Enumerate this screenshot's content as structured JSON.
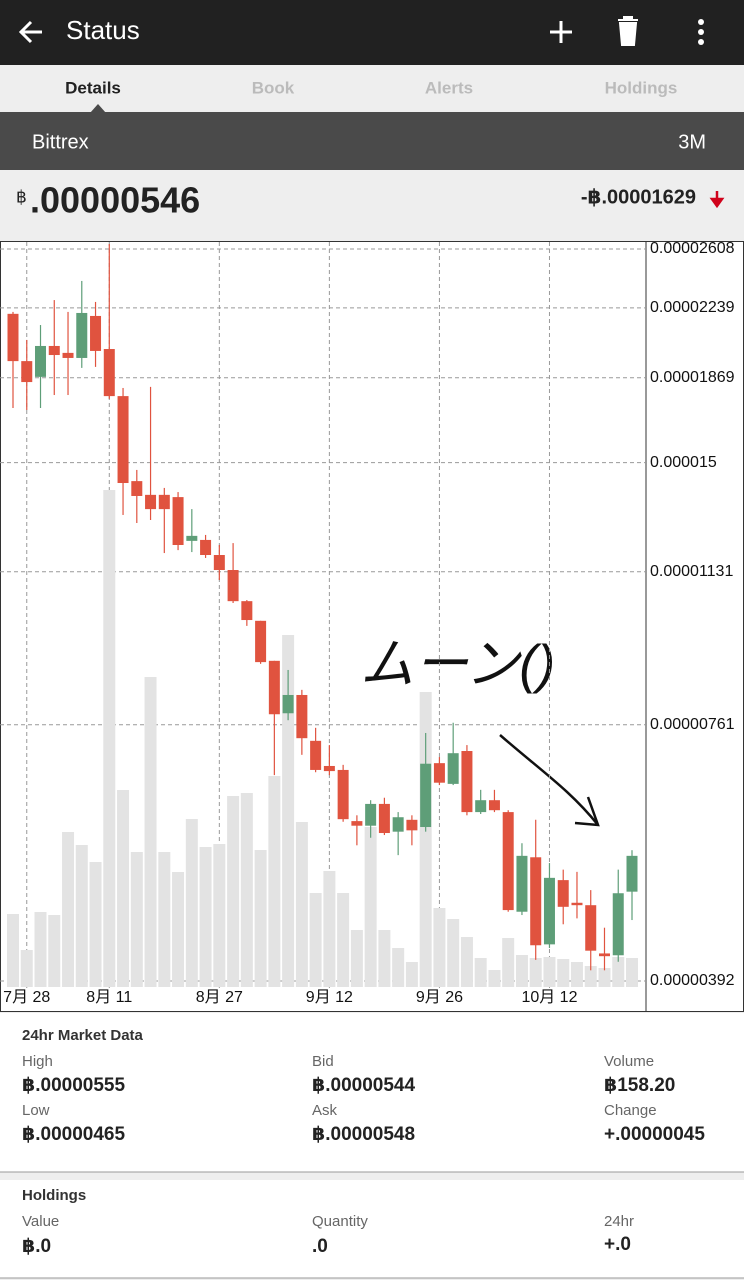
{
  "app_bar": {
    "title": "Status"
  },
  "tabs": [
    "Details",
    "Book",
    "Alerts",
    "Holdings"
  ],
  "exchange": {
    "name": "Bittrex",
    "period": "3M"
  },
  "price": {
    "symbol": "฿",
    "value": ".00000546",
    "change": "-฿.00001629"
  },
  "chart_data": {
    "type": "candlestick",
    "annotation": "ムーン()",
    "categories": [
      null,
      "7月 28",
      null,
      null,
      null,
      null,
      null,
      "8月 11",
      null,
      null,
      null,
      null,
      null,
      null,
      null,
      "8月 27",
      null,
      null,
      null,
      null,
      null,
      null,
      null,
      "9月 12",
      null,
      null,
      null,
      null,
      null,
      null,
      null,
      "9月 26",
      null,
      null,
      null,
      null,
      null,
      null,
      null,
      "10月 12",
      null,
      null,
      null,
      null,
      null,
      null
    ],
    "open": [
      2.205e-05,
      1.951e-05,
      1.873e-05,
      2.029e-05,
      1.993e-05,
      1.967e-05,
      2.193e-05,
      2.013e-05,
      1.782e-05,
      1.43e-05,
      1.38e-05,
      1.38e-05,
      1.372e-05,
      1.225e-05,
      1.228e-05,
      1.181e-05,
      1.136e-05,
      1.048e-05,
      9.96e-06,
      8.98e-06,
      7.84e-06,
      8.22e-06,
      7.3e-06,
      6.84e-06,
      6.77e-06,
      5.93e-06,
      5.86e-06,
      6.2e-06,
      5.77e-06,
      5.95e-06,
      5.84e-06,
      6.89e-06,
      6.53e-06,
      7.11e-06,
      6.07e-06,
      6.26e-06,
      6.07e-06,
      4.69e-06,
      5.4e-06,
      4.31e-06,
      5.09e-06,
      4.8e-06,
      4.77e-06,
      4.21e-06,
      4.19e-06,
      4.94e-06
    ],
    "high": [
      2.216e-05,
      2.061e-05,
      2.142e-05,
      2.285e-05,
      2.216e-05,
      2.401e-05,
      2.274e-05,
      2.642e-05,
      1.82e-05,
      1.472e-05,
      1.825e-05,
      1.405e-05,
      1.39e-05,
      1.33e-05,
      1.244e-05,
      1.212e-05,
      1.218e-05,
      1.051e-05,
      9.96e-06,
      8.98e-06,
      8.77e-06,
      8.33e-06,
      7.55e-06,
      7.22e-06,
      6.86e-06,
      6.02e-06,
      6.26e-06,
      6.3e-06,
      6.07e-06,
      6.02e-06,
      7.45e-06,
      7e-06,
      7.65e-06,
      7.22e-06,
      6.43e-06,
      6.43e-06,
      6.1e-06,
      5.6e-06,
      5.95e-06,
      5.32e-06,
      5.23e-06,
      5.2e-06,
      4.96e-06,
      4.5e-06,
      5.23e-06,
      5.5e-06
    ],
    "low": [
      1.728e-05,
      1.719e-05,
      1.728e-05,
      1.787e-05,
      1.787e-05,
      1.917e-05,
      1.922e-05,
      1.769e-05,
      1.31e-05,
      1.283e-05,
      1.293e-05,
      1.187e-05,
      1.196e-05,
      1.19e-05,
      1.172e-05,
      1.107e-05,
      1.043e-05,
      9.83e-06,
      8.91e-06,
      6.68e-06,
      7.7e-06,
      7.04e-06,
      6.73e-06,
      6.68e-06,
      5.92e-06,
      5.57e-06,
      5.68e-06,
      5.72e-06,
      5.43e-06,
      5.57e-06,
      5.77e-06,
      6.51e-06,
      6.51e-06,
      6.02e-06,
      6.04e-06,
      6.07e-06,
      4.69e-06,
      4.65e-06,
      4.14e-06,
      4.27e-06,
      4.54e-06,
      4.61e-06,
      4.03e-06,
      4.03e-06,
      4.12e-06,
      4.59e-06
    ],
    "close": [
      1.951e-05,
      1.848e-05,
      2.029e-05,
      1.982e-05,
      1.967e-05,
      2.21e-05,
      2.003e-05,
      1.782e-05,
      1.423e-05,
      1.376e-05,
      1.33e-05,
      1.33e-05,
      1.212e-05,
      1.241e-05,
      1.181e-05,
      1.136e-05,
      1.048e-05,
      9.98e-06,
      8.95e-06,
      7.82e-06,
      8.22e-06,
      7.35e-06,
      6.77e-06,
      6.75e-06,
      5.96e-06,
      5.86e-06,
      6.2e-06,
      5.75e-06,
      5.99e-06,
      5.79e-06,
      6.88e-06,
      6.55e-06,
      7.07e-06,
      6.07e-06,
      6.26e-06,
      6.1e-06,
      4.71e-06,
      5.42e-06,
      4.3e-06,
      5.12e-06,
      4.75e-06,
      4.77e-06,
      4.24e-06,
      4.18e-06,
      4.92e-06,
      5.42e-06
    ],
    "volume": [
      73,
      37,
      75,
      72,
      155,
      142,
      125,
      497,
      197,
      135,
      310,
      135,
      115,
      168,
      140,
      143,
      191,
      194,
      137,
      211,
      352,
      165,
      94,
      116,
      94,
      57,
      160,
      57,
      39,
      25,
      295,
      79,
      68,
      50,
      29,
      17,
      49,
      32,
      29,
      30,
      28,
      25,
      21,
      19,
      30,
      29
    ],
    "up_color": "#5e9e78",
    "down_color": "#e0533f",
    "volume_color": "#e3e3e3",
    "ylim": [
      3.92e-06,
      2.608e-05
    ],
    "yticks": [
      3.92e-06,
      7.61e-06,
      1.131e-05,
      1.5e-05,
      1.869e-05,
      2.239e-05,
      2.608e-05
    ],
    "log_scale": true,
    "grid": true
  },
  "market_data": {
    "title": "24hr Market Data",
    "items": [
      {
        "label": "High",
        "value": "฿.00000555"
      },
      {
        "label": "Bid",
        "value": "฿.00000544"
      },
      {
        "label": "Volume",
        "value": "฿158.20"
      },
      {
        "label": "Low",
        "value": "฿.00000465"
      },
      {
        "label": "Ask",
        "value": "฿.00000548"
      },
      {
        "label": "Change",
        "value": "+.00000045"
      }
    ]
  },
  "holdings": {
    "title": "Holdings",
    "items": [
      {
        "label": "Value",
        "value": "฿.0"
      },
      {
        "label": "Quantity",
        "value": ".0"
      },
      {
        "label": "24hr",
        "value": "+.0"
      }
    ]
  }
}
